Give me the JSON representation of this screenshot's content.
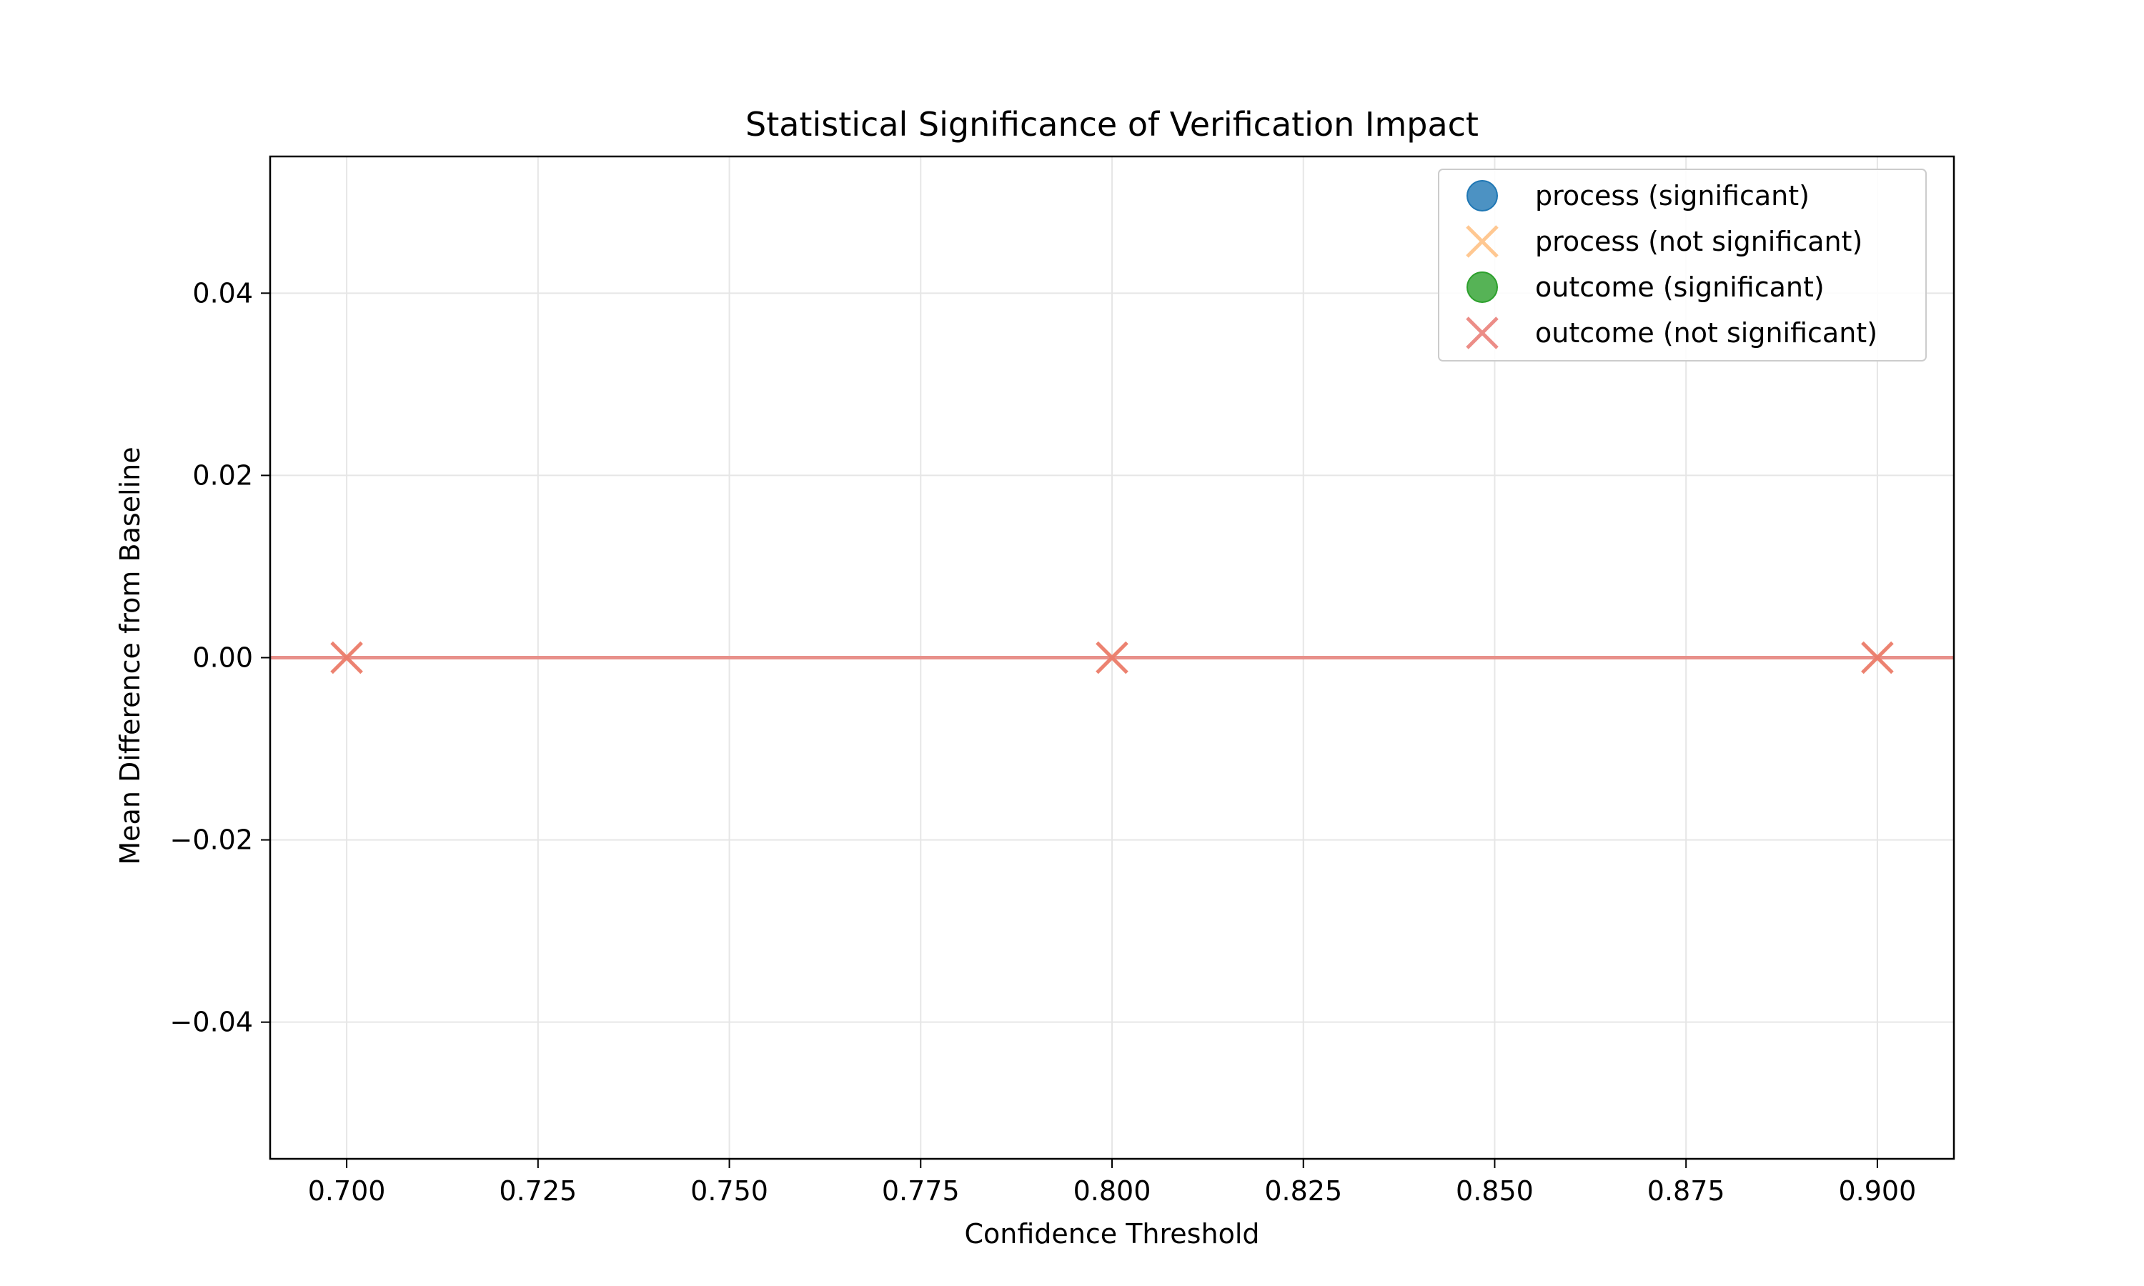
{
  "chart_data": {
    "type": "scatter",
    "title": "Statistical Significance of Verification Impact",
    "xlabel": "Confidence Threshold",
    "ylabel": "Mean Difference from Baseline",
    "xlim": [
      0.69,
      0.91
    ],
    "ylim": [
      -0.055,
      0.055
    ],
    "xticks": [
      0.7,
      0.725,
      0.75,
      0.775,
      0.8,
      0.825,
      0.85,
      0.875,
      0.9
    ],
    "xtick_labels": [
      "0.700",
      "0.725",
      "0.750",
      "0.775",
      "0.800",
      "0.825",
      "0.850",
      "0.875",
      "0.900"
    ],
    "yticks": [
      0.04,
      0.02,
      0.0,
      -0.02,
      -0.04
    ],
    "ytick_labels": [
      "0.04",
      "0.02",
      "0.00",
      "−0.02",
      "−0.04"
    ],
    "grid": true,
    "legend_position": "top-right",
    "reference_line": {
      "y": 0.0,
      "color": "#e8908a"
    },
    "series": [
      {
        "name": "process (significant)",
        "marker": "circle",
        "color": "#1f77b4",
        "x": [],
        "y": []
      },
      {
        "name": "process (not significant)",
        "marker": "x",
        "color": "#ffbb78",
        "x": [
          0.7,
          0.8,
          0.9
        ],
        "y": [
          0.0,
          0.0,
          0.0
        ]
      },
      {
        "name": "outcome (significant)",
        "marker": "circle",
        "color": "#2ca02c",
        "x": [],
        "y": []
      },
      {
        "name": "outcome (not significant)",
        "marker": "x",
        "color": "#e8716a",
        "x": [
          0.7,
          0.8,
          0.9
        ],
        "y": [
          0.0,
          0.0,
          0.0
        ]
      }
    ]
  }
}
